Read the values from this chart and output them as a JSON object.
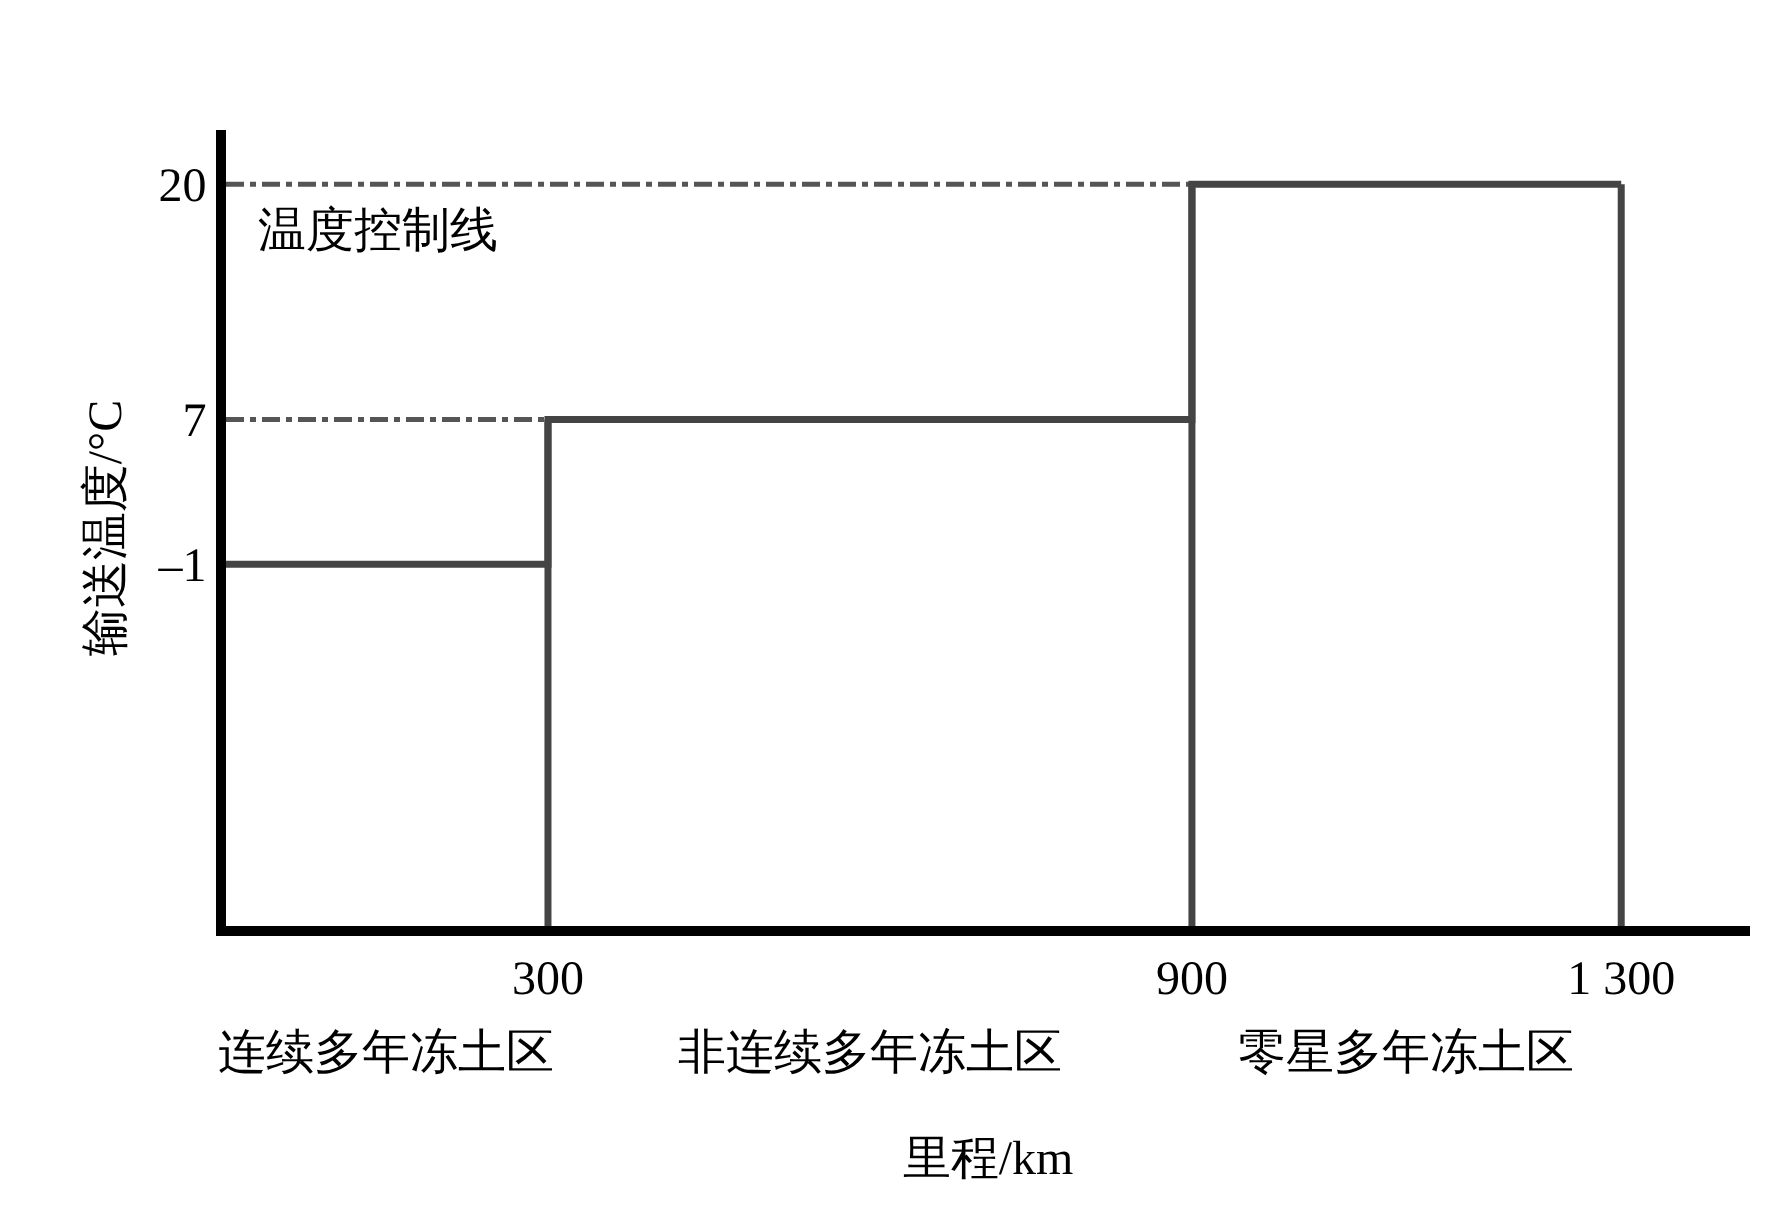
{
  "chart_data": {
    "type": "step",
    "xlabel": "里程/km",
    "ylabel": "输送温度/°C",
    "x": [
      0,
      300,
      900,
      1300
    ],
    "values": [
      -1,
      7,
      20,
      20
    ],
    "color": "#444444",
    "xlim": [
      0,
      1420
    ],
    "xticks": [
      300,
      900,
      {
        "value": 1300,
        "label": "1 300"
      }
    ],
    "ylim": [
      -21,
      23
    ],
    "yticks": [
      {
        "value": -1,
        "label": "–1"
      },
      7,
      20
    ],
    "grid": false,
    "ref_lines": [
      {
        "axis": "y",
        "value": 20,
        "label": "温度控制线",
        "color": "#555555",
        "line_style": "dashdot"
      },
      {
        "axis": "y",
        "value": 7,
        "color": "#555555",
        "line_style": "dashdot"
      },
      {
        "axis": "x",
        "value": 300,
        "color": "#444444",
        "line_style": "solid"
      },
      {
        "axis": "x",
        "value": 900,
        "color": "#444444",
        "line_style": "solid"
      },
      {
        "axis": "x",
        "value": 1300,
        "color": "#444444",
        "line_style": "solid"
      }
    ],
    "annotations": [
      "连续多年冻土区",
      "非连续多年冻土区",
      "零星多年冻土区"
    ]
  }
}
